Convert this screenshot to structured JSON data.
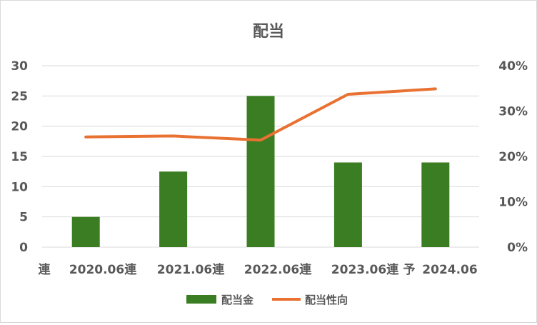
{
  "chart_data": {
    "type": "bar",
    "title": "配当",
    "categories": [
      "連　2020.06連",
      "2021.06連",
      "2022.06連",
      "2023.06連",
      "予 2024.06"
    ],
    "series": [
      {
        "name": "配当金",
        "type": "bar",
        "axis": "left",
        "values": [
          5,
          12.5,
          25,
          14,
          14
        ],
        "color": "#3a7d22"
      },
      {
        "name": "配当性向",
        "type": "line",
        "axis": "right",
        "values": [
          24.3,
          24.5,
          23.6,
          33.7,
          34.9
        ],
        "color": "#e97132"
      }
    ],
    "left_axis": {
      "min": 0,
      "max": 30,
      "ticks": [
        "0",
        "5",
        "10",
        "15",
        "20",
        "25",
        "30"
      ]
    },
    "right_axis": {
      "min": 0,
      "max": 40,
      "ticks": [
        "0%",
        "10%",
        "20%",
        "30%",
        "40%"
      ]
    },
    "cat_labels": [
      "連",
      "2020.06連",
      "2021.06連",
      "2022.06連",
      "2023.06連",
      "予",
      "2024.06"
    ],
    "grid": true,
    "legend_position": "bottom"
  }
}
